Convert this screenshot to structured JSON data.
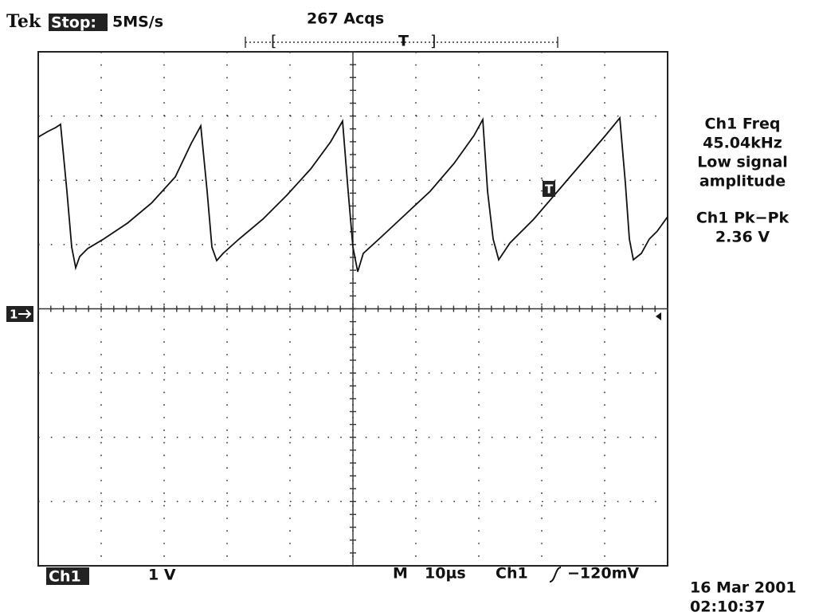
{
  "header": {
    "brand": "Tek",
    "state": "Stop:",
    "sample_rate": "5MS/s",
    "acquisitions": "267 Acqs",
    "trigger_position": "T"
  },
  "measurements": [
    {
      "label": "Ch1 Freq",
      "value": "45.04kHz",
      "note": [
        "Low signal",
        "amplitude"
      ]
    },
    {
      "label": "Ch1 Pk−Pk",
      "value": "2.36 V"
    }
  ],
  "channel_marker": "1",
  "trigger_marker": "T",
  "footer": {
    "channel": "Ch1",
    "volts_per_div": "1 V",
    "mode": "M",
    "time_per_div": "10µs",
    "trigger_source": "Ch1",
    "trigger_level": "−120mV",
    "date": "16 Mar 2001",
    "time": "02:10:37"
  }
}
